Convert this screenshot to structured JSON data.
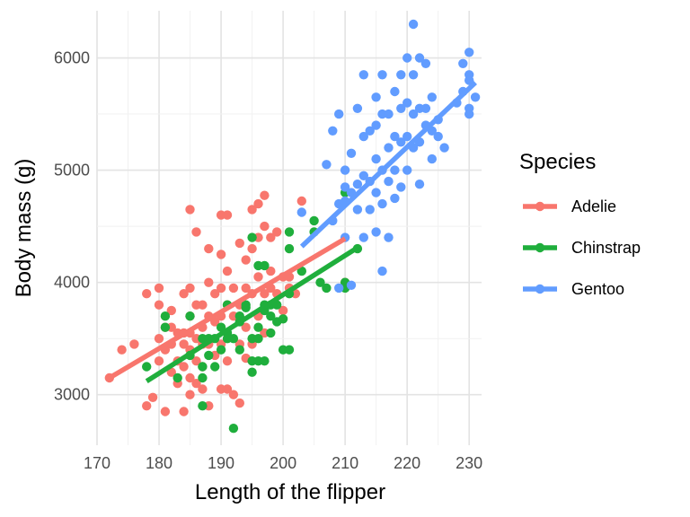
{
  "chart_data": {
    "type": "scatter",
    "title": "",
    "xlabel": "Length of the flipper",
    "ylabel": "Body mass (g)",
    "xlim": [
      170,
      232
    ],
    "ylim": [
      2550,
      6420
    ],
    "x_ticks": [
      170,
      180,
      190,
      200,
      210,
      220,
      230
    ],
    "x_tick_labels": [
      "170",
      "180",
      "190",
      "200",
      "210",
      "220",
      "230"
    ],
    "y_ticks": [
      3000,
      4000,
      5000,
      6000
    ],
    "y_tick_labels": [
      "3000",
      "4000",
      "5000",
      "6000"
    ],
    "grid": true,
    "legend_title": "Species",
    "legend_position": "right",
    "colors": {
      "Adelie": "#F8766D",
      "Chinstrap": "#1FAE3C",
      "Gentoo": "#619CFF"
    },
    "series": [
      {
        "name": "Adelie",
        "trend": {
          "x": [
            172,
            210
          ],
          "y": [
            3150,
            4390
          ]
        },
        "points": [
          [
            172,
            3150
          ],
          [
            174,
            3400
          ],
          [
            176,
            3450
          ],
          [
            178,
            3900
          ],
          [
            178,
            2900
          ],
          [
            179,
            2975
          ],
          [
            180,
            3950
          ],
          [
            180,
            3800
          ],
          [
            180,
            3500
          ],
          [
            180,
            3300
          ],
          [
            181,
            3600
          ],
          [
            181,
            3400
          ],
          [
            181,
            2850
          ],
          [
            182,
            3600
          ],
          [
            182,
            3750
          ],
          [
            182,
            3450
          ],
          [
            182,
            3200
          ],
          [
            183,
            3550
          ],
          [
            183,
            3300
          ],
          [
            183,
            3100
          ],
          [
            184,
            3900
          ],
          [
            184,
            3550
          ],
          [
            184,
            3450
          ],
          [
            184,
            3250
          ],
          [
            184,
            2850
          ],
          [
            185,
            4650
          ],
          [
            185,
            3950
          ],
          [
            185,
            3700
          ],
          [
            185,
            3550
          ],
          [
            185,
            3400
          ],
          [
            185,
            3150
          ],
          [
            185,
            3000
          ],
          [
            186,
            4450
          ],
          [
            186,
            3800
          ],
          [
            186,
            3500
          ],
          [
            186,
            3300
          ],
          [
            186,
            3100
          ],
          [
            187,
            3800
          ],
          [
            187,
            3600
          ],
          [
            187,
            3450
          ],
          [
            187,
            3250
          ],
          [
            187,
            3050
          ],
          [
            188,
            4300
          ],
          [
            188,
            4000
          ],
          [
            188,
            3700
          ],
          [
            188,
            3450
          ],
          [
            188,
            2900
          ],
          [
            189,
            3900
          ],
          [
            189,
            3650
          ],
          [
            189,
            3350
          ],
          [
            190,
            4600
          ],
          [
            190,
            4250
          ],
          [
            190,
            3950
          ],
          [
            190,
            3700
          ],
          [
            190,
            3450
          ],
          [
            190,
            3050
          ],
          [
            191,
            4600
          ],
          [
            191,
            4100
          ],
          [
            191,
            3800
          ],
          [
            191,
            3300
          ],
          [
            191,
            3050
          ],
          [
            192,
            3950
          ],
          [
            192,
            3700
          ],
          [
            192,
            3000
          ],
          [
            193,
            4350
          ],
          [
            193,
            3800
          ],
          [
            193,
            3450
          ],
          [
            193,
            2925
          ],
          [
            194,
            4200
          ],
          [
            194,
            3950
          ],
          [
            194,
            3600
          ],
          [
            194,
            3325
          ],
          [
            195,
            4650
          ],
          [
            195,
            4300
          ],
          [
            195,
            3900
          ],
          [
            195,
            3450
          ],
          [
            196,
            4700
          ],
          [
            196,
            4400
          ],
          [
            196,
            4050
          ],
          [
            196,
            3700
          ],
          [
            197,
            4775
          ],
          [
            197,
            4500
          ],
          [
            197,
            3900
          ],
          [
            197,
            3550
          ],
          [
            198,
            4400
          ],
          [
            198,
            4100
          ],
          [
            198,
            3950
          ],
          [
            199,
            4450
          ],
          [
            199,
            3900
          ],
          [
            200,
            4050
          ],
          [
            200,
            3750
          ],
          [
            201,
            4050
          ],
          [
            201,
            3950
          ],
          [
            202,
            3900
          ],
          [
            203,
            4725
          ],
          [
            210,
            4000
          ]
        ]
      },
      {
        "name": "Chinstrap",
        "trend": {
          "x": [
            178,
            212
          ],
          "y": [
            3120,
            4310
          ]
        },
        "points": [
          [
            178,
            3250
          ],
          [
            181,
            3700
          ],
          [
            181,
            3600
          ],
          [
            183,
            3150
          ],
          [
            185,
            3700
          ],
          [
            185,
            3350
          ],
          [
            187,
            3500
          ],
          [
            187,
            3250
          ],
          [
            187,
            3150
          ],
          [
            187,
            2900
          ],
          [
            188,
            3500
          ],
          [
            188,
            3350
          ],
          [
            189,
            3500
          ],
          [
            189,
            3250
          ],
          [
            190,
            3400
          ],
          [
            190,
            3600
          ],
          [
            191,
            3550
          ],
          [
            191,
            3500
          ],
          [
            191,
            3800
          ],
          [
            192,
            3500
          ],
          [
            192,
            2700
          ],
          [
            193,
            3700
          ],
          [
            193,
            3650
          ],
          [
            193,
            3400
          ],
          [
            194,
            3800
          ],
          [
            194,
            3775
          ],
          [
            195,
            3500
          ],
          [
            195,
            3300
          ],
          [
            195,
            4400
          ],
          [
            195,
            3200
          ],
          [
            196,
            3600
          ],
          [
            196,
            3500
          ],
          [
            196,
            3300
          ],
          [
            196,
            4150
          ],
          [
            197,
            3800
          ],
          [
            197,
            4150
          ],
          [
            197,
            3750
          ],
          [
            197,
            3300
          ],
          [
            198,
            3700
          ],
          [
            198,
            3800
          ],
          [
            198,
            3550
          ],
          [
            199,
            3650
          ],
          [
            199,
            3800
          ],
          [
            200,
            3675
          ],
          [
            200,
            3400
          ],
          [
            201,
            4300
          ],
          [
            201,
            4450
          ],
          [
            201,
            3400
          ],
          [
            201,
            3900
          ],
          [
            203,
            4100
          ],
          [
            205,
            4550
          ],
          [
            205,
            4450
          ],
          [
            206,
            4000
          ],
          [
            207,
            3950
          ],
          [
            210,
            4800
          ],
          [
            210,
            4000
          ],
          [
            210,
            3950
          ],
          [
            212,
            4300
          ]
        ]
      },
      {
        "name": "Gentoo",
        "trend": {
          "x": [
            203,
            231
          ],
          "y": [
            4320,
            5780
          ]
        },
        "points": [
          [
            203,
            4625
          ],
          [
            207,
            5050
          ],
          [
            208,
            4550
          ],
          [
            208,
            5350
          ],
          [
            209,
            5500
          ],
          [
            209,
            4700
          ],
          [
            209,
            3950
          ],
          [
            210,
            4725
          ],
          [
            210,
            4850
          ],
          [
            210,
            5000
          ],
          [
            210,
            4400
          ],
          [
            211,
            4800
          ],
          [
            211,
            5150
          ],
          [
            211,
            3975
          ],
          [
            212,
            5550
          ],
          [
            212,
            4875
          ],
          [
            212,
            4650
          ],
          [
            213,
            5850
          ],
          [
            213,
            5300
          ],
          [
            213,
            4950
          ],
          [
            213,
            4400
          ],
          [
            214,
            5350
          ],
          [
            214,
            4900
          ],
          [
            214,
            4650
          ],
          [
            215,
            5650
          ],
          [
            215,
            5400
          ],
          [
            215,
            5100
          ],
          [
            215,
            4800
          ],
          [
            215,
            4450
          ],
          [
            216,
            5850
          ],
          [
            216,
            5500
          ],
          [
            216,
            5000
          ],
          [
            216,
            4700
          ],
          [
            216,
            4100
          ],
          [
            217,
            5500
          ],
          [
            217,
            5200
          ],
          [
            217,
            4900
          ],
          [
            217,
            4400
          ],
          [
            218,
            5700
          ],
          [
            218,
            5300
          ],
          [
            218,
            5000
          ],
          [
            218,
            4750
          ],
          [
            219,
            5850
          ],
          [
            219,
            5550
          ],
          [
            219,
            5250
          ],
          [
            219,
            4850
          ],
          [
            220,
            6000
          ],
          [
            220,
            5600
          ],
          [
            220,
            5300
          ],
          [
            220,
            5000
          ],
          [
            221,
            6300
          ],
          [
            221,
            5850
          ],
          [
            221,
            5500
          ],
          [
            221,
            5200
          ],
          [
            222,
            6000
          ],
          [
            222,
            5550
          ],
          [
            222,
            5250
          ],
          [
            222,
            4875
          ],
          [
            223,
            5950
          ],
          [
            223,
            5550
          ],
          [
            223,
            5400
          ],
          [
            224,
            5650
          ],
          [
            224,
            5350
          ],
          [
            224,
            5100
          ],
          [
            225,
            5450
          ],
          [
            225,
            5300
          ],
          [
            226,
            5200
          ],
          [
            228,
            5600
          ],
          [
            229,
            5950
          ],
          [
            229,
            5700
          ],
          [
            230,
            6050
          ],
          [
            230,
            5850
          ],
          [
            230,
            5800
          ],
          [
            230,
            5550
          ],
          [
            230,
            5500
          ],
          [
            231,
            5650
          ]
        ]
      }
    ]
  }
}
